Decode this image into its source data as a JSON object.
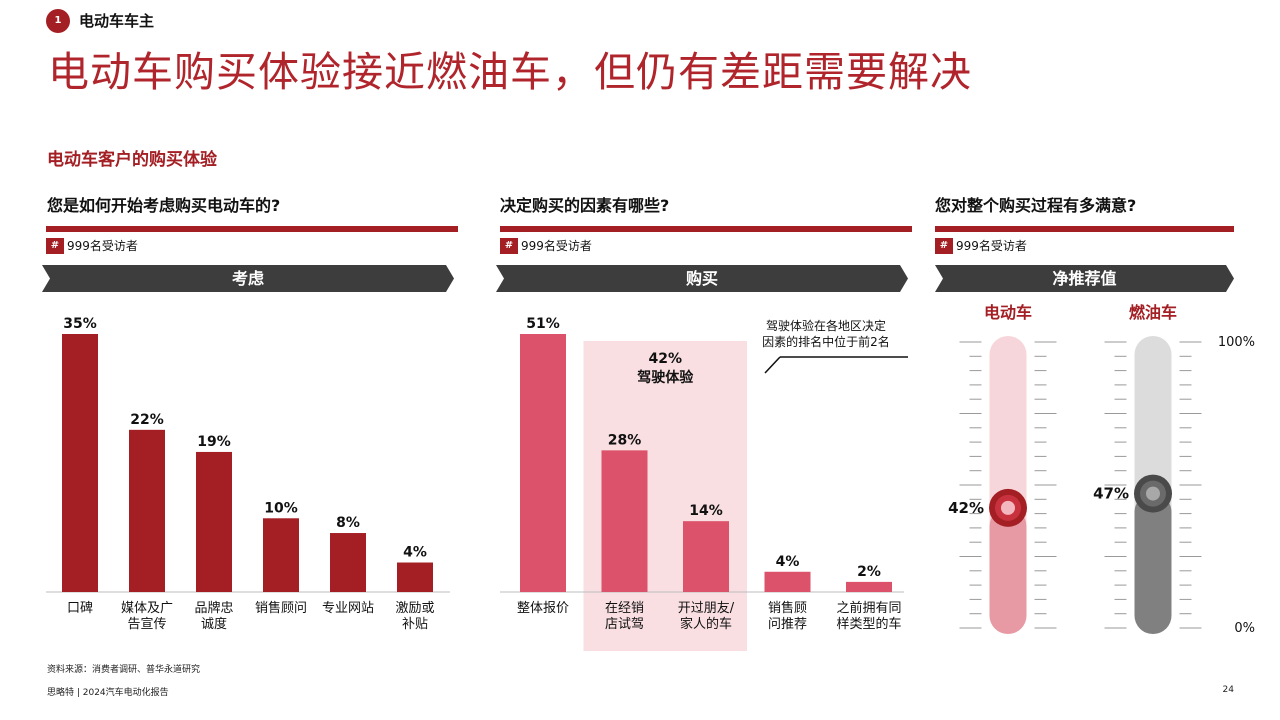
{
  "section": {
    "number": "1",
    "label": "电动车车主"
  },
  "title": "电动车购买体验接近燃油车，但仍有差距需要解决",
  "subtitle": "电动车客户的购买体验",
  "colors": {
    "dark_red": "#a31f24",
    "pink": "#dc526a",
    "light_pink": "#f9dfe2",
    "gauge_ev_track": "#f6d6da",
    "gauge_ev_fill": "#e89aa4",
    "gauge_ice_track": "#dcdcdc",
    "gauge_ice_fill": "#808080",
    "phase_bg": "#3d3d3d"
  },
  "panels": [
    {
      "question": "您是如何开始考虑购买电动车的?",
      "respondents": "999名受访者",
      "hash": "#",
      "phase": "考虑"
    },
    {
      "question": "决定购买的因素有哪些?",
      "respondents": "999名受访者",
      "hash": "#",
      "phase": "购买"
    },
    {
      "question": "您对整个购买过程有多满意?",
      "respondents": "999名受访者",
      "hash": "#",
      "phase": "净推荐值"
    }
  ],
  "chart_data": [
    {
      "type": "bar",
      "title": "考虑",
      "categories": [
        [
          "口碑"
        ],
        [
          "媒体及广",
          "告宣传"
        ],
        [
          "品牌忠",
          "诚度"
        ],
        [
          "销售顾问"
        ],
        [
          "专业网站"
        ],
        [
          "激励或",
          "补贴"
        ]
      ],
      "values": [
        35,
        22,
        19,
        10,
        8,
        4
      ],
      "value_labels": [
        "35%",
        "22%",
        "19%",
        "10%",
        "8%",
        "4%"
      ],
      "ylim": [
        0,
        35
      ]
    },
    {
      "type": "bar",
      "title": "购买",
      "categories": [
        [
          "整体报价"
        ],
        [
          "在经销",
          "店试驾"
        ],
        [
          "开过朋友/",
          "家人的车"
        ],
        [
          "销售顾",
          "问推荐"
        ],
        [
          "之前拥有同",
          "样类型的车"
        ]
      ],
      "values": [
        51,
        28,
        14,
        4,
        2
      ],
      "value_labels": [
        "51%",
        "28%",
        "14%",
        "4%",
        "2%"
      ],
      "ylim": [
        0,
        51
      ],
      "highlight": {
        "from_index": 1,
        "to_index": 2,
        "value_label": "42%",
        "label": "驾驶体验"
      },
      "annotation": [
        "驾驶体验在各地区决定",
        "因素的排名中位于前2名"
      ]
    },
    {
      "type": "gauge",
      "title": "净推荐值",
      "axis": {
        "max_label": "100%",
        "min_label": "0%",
        "range": [
          0,
          100
        ]
      },
      "series": [
        {
          "name": "电动车",
          "value": 42,
          "value_label": "42%"
        },
        {
          "name": "燃油车",
          "value": 47,
          "value_label": "47%"
        }
      ]
    }
  ],
  "footer": {
    "source": "资料来源：消费者调研、普华永道研究",
    "org": "思略特 | 2024汽车电动化报告",
    "page": "24"
  }
}
